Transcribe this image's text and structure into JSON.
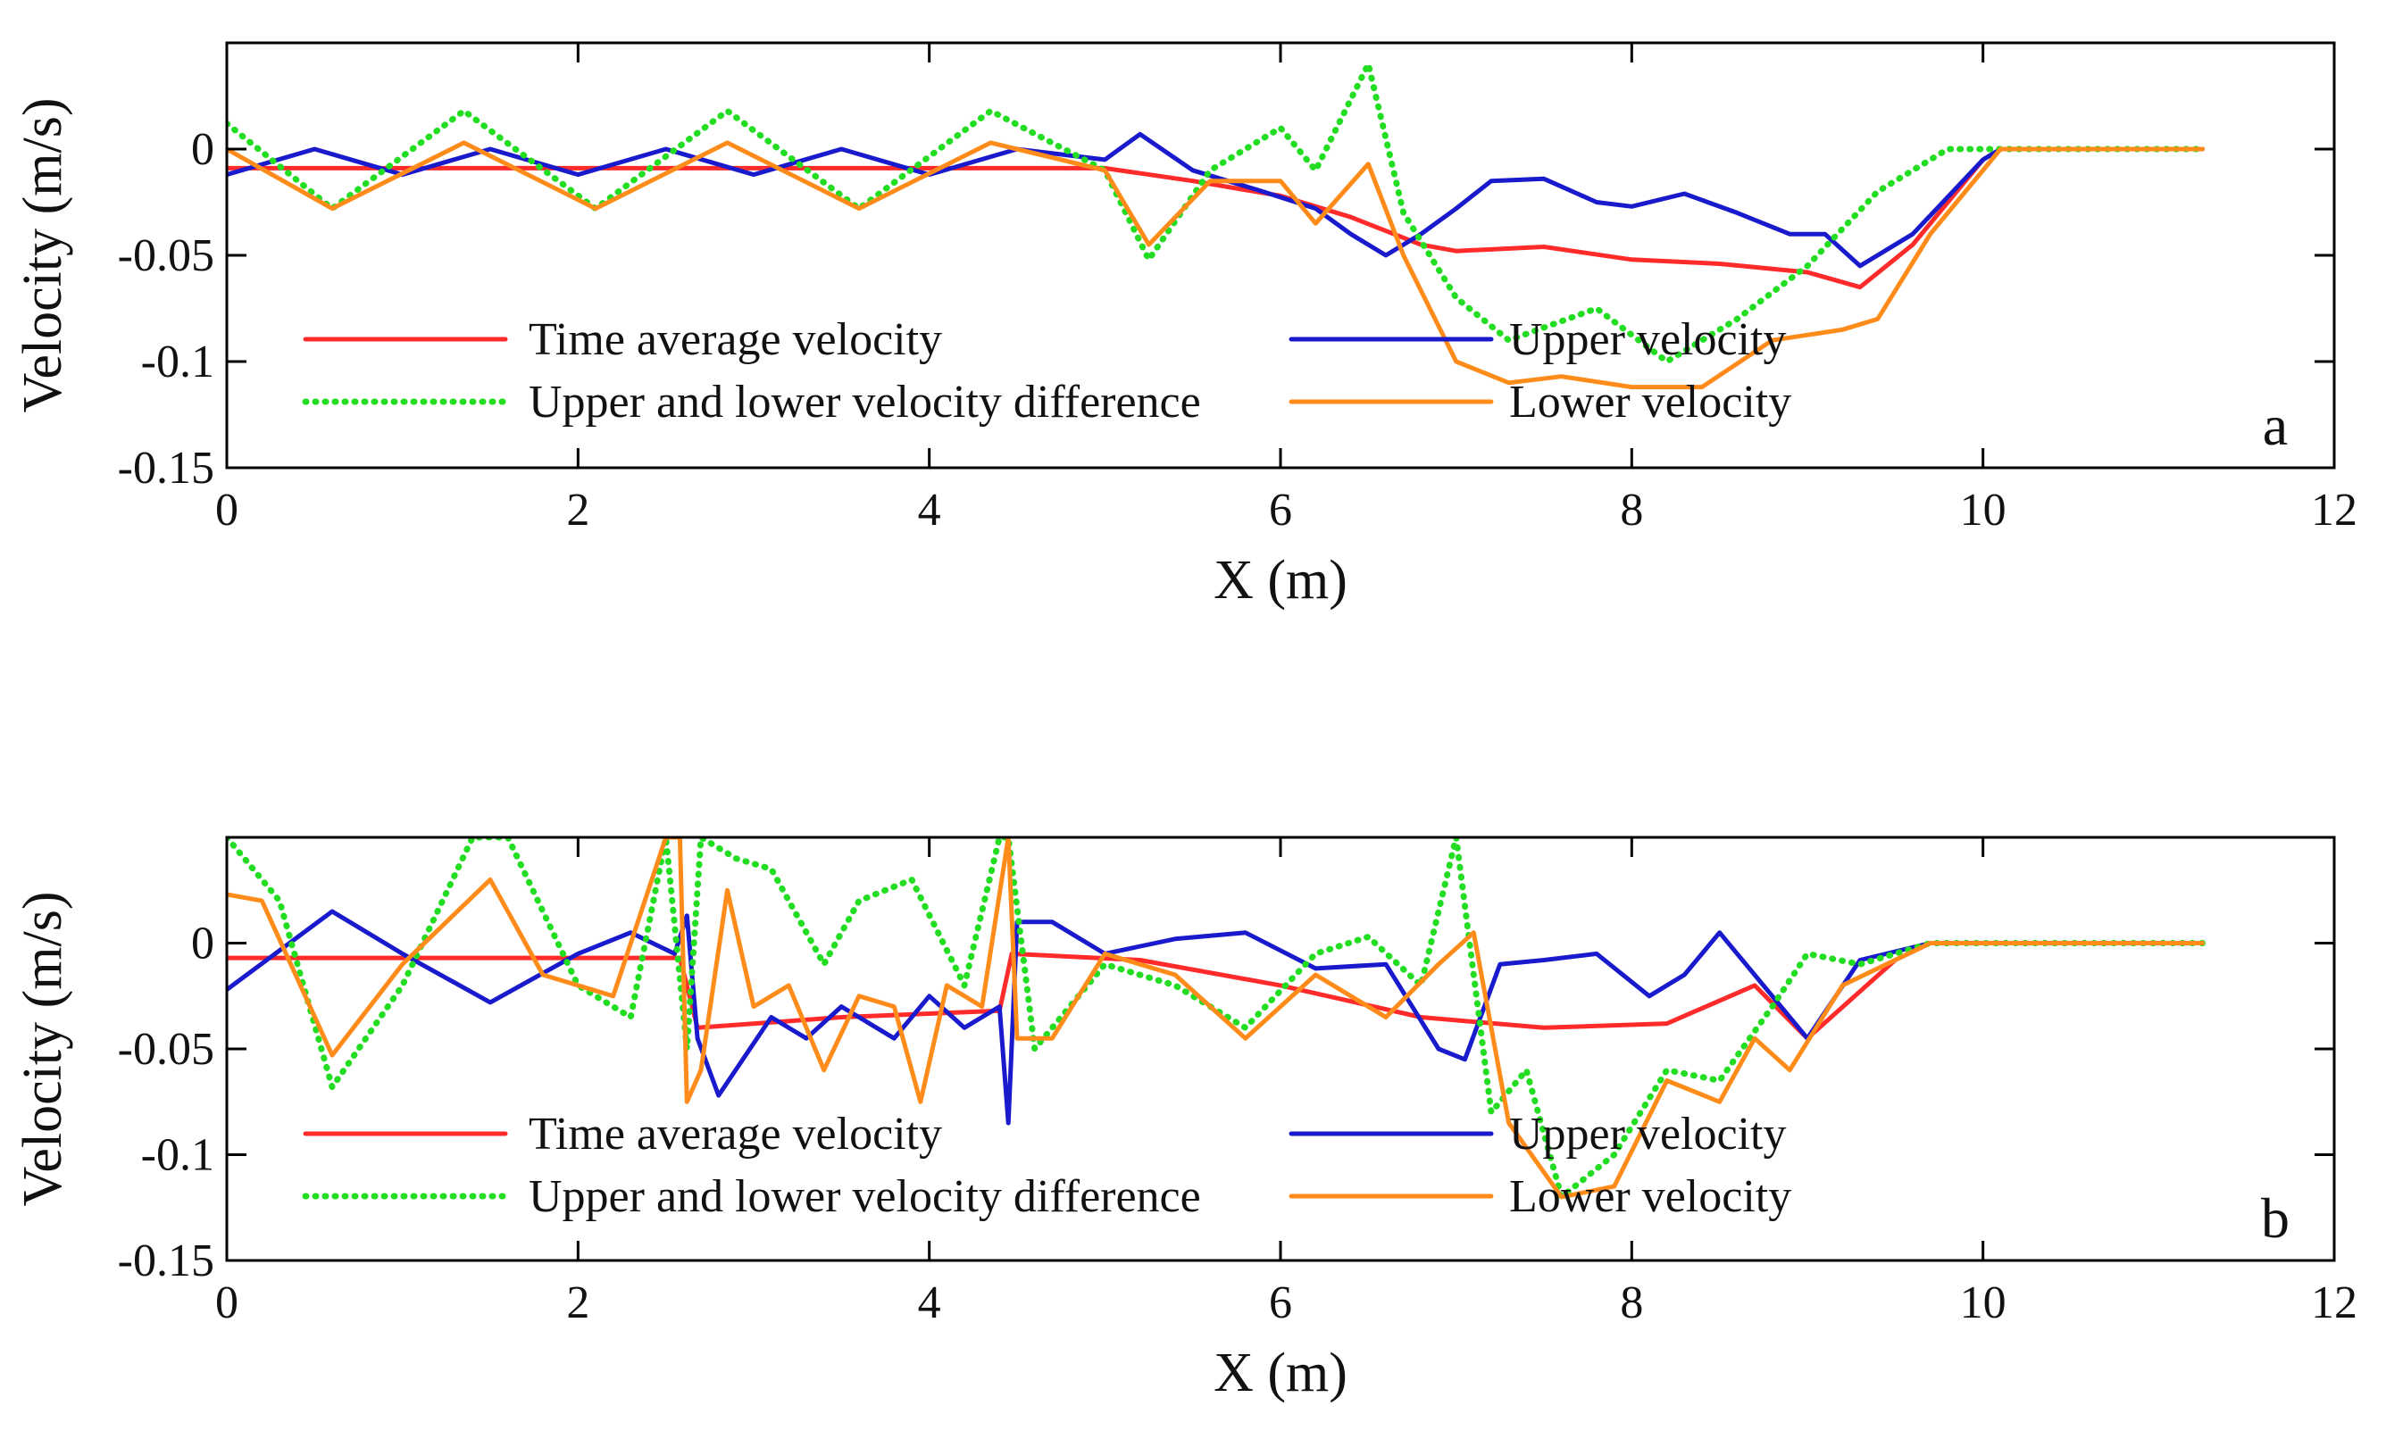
{
  "chart_data": [
    {
      "type": "line",
      "panel_label": "a",
      "xlabel": "X (m)",
      "ylabel": "Velocity (m/s)",
      "xlim": [
        0,
        12
      ],
      "ylim": [
        -0.15,
        0.05
      ],
      "xticks": [
        0,
        2,
        4,
        6,
        8,
        10,
        12
      ],
      "yticks": [
        0,
        -0.05,
        -0.1,
        -0.15
      ],
      "xtick_labels": [
        "0",
        "2",
        "4",
        "6",
        "8",
        "10",
        "12"
      ],
      "ytick_labels": [
        "0",
        "-0.05",
        "-0.1",
        "-0.15"
      ],
      "legend": {
        "placement": "lower-center",
        "columns": 2
      },
      "series": [
        {
          "name": "Time average velocity",
          "color": "#ff2a2a",
          "style": "solid",
          "x": [
            0,
            1,
            2,
            3,
            4,
            5,
            5.5,
            6,
            6.4,
            6.8,
            7,
            7.5,
            8,
            8.5,
            9,
            9.3,
            9.6,
            10,
            10.1,
            11.25
          ],
          "y": [
            -0.009,
            -0.009,
            -0.009,
            -0.009,
            -0.009,
            -0.009,
            -0.015,
            -0.022,
            -0.032,
            -0.045,
            -0.048,
            -0.046,
            -0.052,
            -0.054,
            -0.058,
            -0.065,
            -0.045,
            -0.005,
            0,
            0
          ]
        },
        {
          "name": "Upper velocity",
          "color": "#1a1acd",
          "style": "solid",
          "x": [
            0,
            0.5,
            1,
            1.5,
            2,
            2.5,
            3,
            3.5,
            4,
            4.5,
            5,
            5.2,
            5.5,
            5.9,
            6.2,
            6.4,
            6.6,
            6.8,
            7,
            7.2,
            7.5,
            7.8,
            8,
            8.3,
            8.6,
            8.9,
            9.1,
            9.3,
            9.6,
            10,
            10.1,
            11.25
          ],
          "y": [
            -0.012,
            0,
            -0.012,
            0,
            -0.012,
            0,
            -0.012,
            0,
            -0.012,
            0,
            -0.005,
            0.007,
            -0.01,
            -0.02,
            -0.028,
            -0.04,
            -0.05,
            -0.04,
            -0.028,
            -0.015,
            -0.014,
            -0.025,
            -0.027,
            -0.021,
            -0.03,
            -0.04,
            -0.04,
            -0.055,
            -0.04,
            -0.005,
            0,
            0
          ]
        },
        {
          "name": "Upper and lower velocity difference",
          "color": "#22dd22",
          "style": "dotted",
          "x": [
            0,
            0.6,
            1.35,
            2.1,
            2.85,
            3.6,
            4.35,
            5,
            5.25,
            5.6,
            6,
            6.2,
            6.5,
            6.7,
            7,
            7.3,
            7.8,
            8.2,
            8.6,
            9,
            9.4,
            9.8,
            10.1,
            11.25
          ],
          "y": [
            0.012,
            -0.028,
            0.018,
            -0.028,
            0.018,
            -0.028,
            0.018,
            -0.01,
            -0.052,
            -0.01,
            0.01,
            -0.01,
            0.04,
            -0.03,
            -0.07,
            -0.09,
            -0.075,
            -0.1,
            -0.08,
            -0.055,
            -0.02,
            0,
            0,
            0
          ]
        },
        {
          "name": "Lower velocity",
          "color": "#ff8c1a",
          "style": "solid",
          "x": [
            0,
            0.6,
            1.35,
            2.1,
            2.85,
            3.6,
            4.35,
            5,
            5.25,
            5.6,
            6,
            6.2,
            6.5,
            6.7,
            7,
            7.3,
            7.6,
            8,
            8.4,
            8.8,
            9.2,
            9.4,
            9.7,
            10.1,
            11.25
          ],
          "y": [
            0,
            -0.028,
            0.003,
            -0.028,
            0.003,
            -0.028,
            0.003,
            -0.01,
            -0.045,
            -0.015,
            -0.015,
            -0.035,
            -0.007,
            -0.05,
            -0.1,
            -0.11,
            -0.107,
            -0.112,
            -0.112,
            -0.09,
            -0.085,
            -0.08,
            -0.04,
            0,
            0
          ]
        }
      ]
    },
    {
      "type": "line",
      "panel_label": "b",
      "xlabel": "X (m)",
      "ylabel": "Velocity (m/s)",
      "xlim": [
        0,
        12
      ],
      "ylim": [
        -0.15,
        0.05
      ],
      "xticks": [
        0,
        2,
        4,
        6,
        8,
        10,
        12
      ],
      "yticks": [
        0,
        -0.05,
        -0.1,
        -0.15
      ],
      "xtick_labels": [
        "0",
        "2",
        "4",
        "6",
        "8",
        "10",
        "12"
      ],
      "ytick_labels": [
        "0",
        "-0.05",
        "-0.1",
        "-0.15"
      ],
      "legend": {
        "placement": "lower-center",
        "columns": 2
      },
      "series": [
        {
          "name": "Time average velocity",
          "color": "#ff2a2a",
          "style": "solid",
          "x": [
            0,
            2.58,
            2.68,
            3.5,
            4.4,
            4.47,
            5.2,
            6,
            6.8,
            7.5,
            8.2,
            8.7,
            9,
            9.5,
            9.7,
            11.25
          ],
          "y": [
            -0.007,
            -0.007,
            -0.04,
            -0.035,
            -0.032,
            -0.005,
            -0.008,
            -0.02,
            -0.035,
            -0.04,
            -0.038,
            -0.02,
            -0.045,
            -0.008,
            0,
            0
          ]
        },
        {
          "name": "Upper velocity",
          "color": "#1a1acd",
          "style": "solid",
          "x": [
            0,
            0.6,
            1.0,
            1.5,
            2.0,
            2.3,
            2.55,
            2.62,
            2.68,
            2.8,
            3.1,
            3.3,
            3.5,
            3.8,
            4.0,
            4.2,
            4.4,
            4.45,
            4.5,
            4.7,
            5.0,
            5.4,
            5.8,
            6.2,
            6.6,
            6.9,
            7.05,
            7.25,
            7.5,
            7.8,
            8.1,
            8.3,
            8.5,
            8.8,
            9.0,
            9.3,
            9.7,
            11.25
          ],
          "y": [
            -0.022,
            0.015,
            -0.005,
            -0.028,
            -0.005,
            0.005,
            -0.005,
            0.013,
            -0.045,
            -0.072,
            -0.035,
            -0.045,
            -0.03,
            -0.045,
            -0.025,
            -0.04,
            -0.03,
            -0.085,
            0.01,
            0.01,
            -0.005,
            0.002,
            0.005,
            -0.012,
            -0.01,
            -0.05,
            -0.055,
            -0.01,
            -0.008,
            -0.005,
            -0.025,
            -0.015,
            0.005,
            -0.025,
            -0.045,
            -0.008,
            0,
            0
          ]
        },
        {
          "name": "Upper and lower velocity difference",
          "color": "#22dd22",
          "style": "dotted",
          "x": [
            0,
            0.3,
            0.6,
            1.0,
            1.4,
            1.6,
            2.0,
            2.3,
            2.5,
            2.62,
            2.7,
            2.9,
            3.1,
            3.4,
            3.6,
            3.9,
            4.2,
            4.4,
            4.45,
            4.6,
            5.0,
            5.4,
            5.8,
            6.2,
            6.5,
            6.8,
            7.0,
            7.2,
            7.4,
            7.6,
            7.9,
            8.2,
            8.5,
            8.8,
            9.0,
            9.3,
            9.7,
            11.25
          ],
          "y": [
            0.05,
            0.02,
            -0.068,
            -0.02,
            0.05,
            0.05,
            -0.02,
            -0.035,
            0.05,
            -0.05,
            0.05,
            0.04,
            0.035,
            -0.01,
            0.02,
            0.03,
            -0.02,
            0.05,
            0.05,
            -0.05,
            -0.01,
            -0.02,
            -0.04,
            -0.005,
            0.003,
            -0.02,
            0.05,
            -0.08,
            -0.06,
            -0.12,
            -0.1,
            -0.06,
            -0.065,
            -0.03,
            -0.005,
            -0.01,
            0,
            0
          ]
        },
        {
          "name": "Lower velocity",
          "color": "#ff8c1a",
          "style": "solid",
          "x": [
            0,
            0.2,
            0.6,
            1.0,
            1.5,
            1.8,
            2.2,
            2.5,
            2.58,
            2.62,
            2.7,
            2.85,
            3.0,
            3.2,
            3.4,
            3.6,
            3.8,
            3.95,
            4.1,
            4.3,
            4.45,
            4.5,
            4.7,
            5.0,
            5.4,
            5.8,
            6.2,
            6.6,
            6.9,
            7.1,
            7.3,
            7.6,
            7.9,
            8.2,
            8.5,
            8.7,
            8.9,
            9.2,
            9.7,
            11.25
          ],
          "y": [
            0.023,
            0.02,
            -0.053,
            -0.01,
            0.03,
            -0.015,
            -0.025,
            0.05,
            0.05,
            -0.075,
            -0.06,
            0.025,
            -0.03,
            -0.02,
            -0.06,
            -0.025,
            -0.03,
            -0.075,
            -0.02,
            -0.03,
            0.05,
            -0.045,
            -0.045,
            -0.005,
            -0.015,
            -0.045,
            -0.015,
            -0.035,
            -0.01,
            0.005,
            -0.085,
            -0.12,
            -0.115,
            -0.065,
            -0.075,
            -0.045,
            -0.06,
            -0.02,
            0,
            0
          ]
        }
      ]
    }
  ]
}
